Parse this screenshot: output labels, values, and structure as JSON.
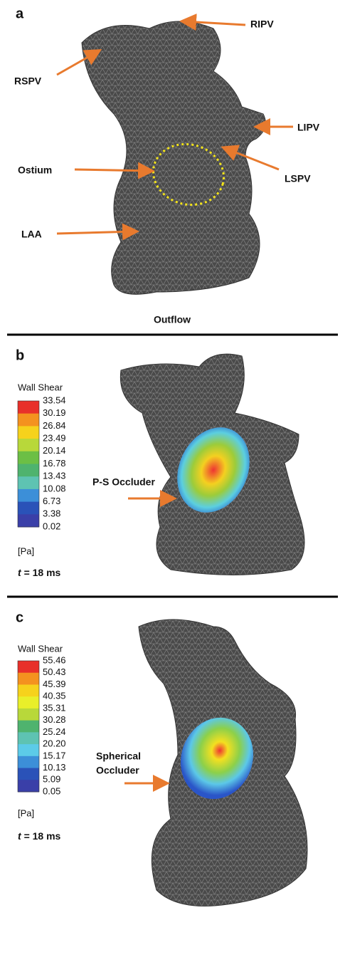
{
  "panel_a": {
    "label": "a",
    "annotations": [
      "RIPV",
      "RSPV",
      "LIPV",
      "Ostium",
      "LSPV",
      "LAA"
    ],
    "outflow": "Outflow"
  },
  "panel_b": {
    "label": "b",
    "colorbar_title": "Wall Shear",
    "colorbar_labels": [
      "33.54",
      "30.19",
      "26.84",
      "23.49",
      "20.14",
      "16.78",
      "13.43",
      "10.08",
      "6.73",
      "3.38",
      "0.02"
    ],
    "unit": "[Pa]",
    "time_var": "t",
    "time_text": "= 18 ms",
    "occluder": [
      "P-S Occluder"
    ]
  },
  "panel_c": {
    "label": "c",
    "colorbar_title": "Wall Shear",
    "colorbar_labels": [
      "55.46",
      "50.43",
      "45.39",
      "40.35",
      "35.31",
      "30.28",
      "25.24",
      "20.20",
      "15.17",
      "10.13",
      "5.09",
      "0.05"
    ],
    "unit": "[Pa]",
    "time_var": "t",
    "time_text": "= 18 ms",
    "occluder": [
      "Spherical",
      "Occluder"
    ]
  }
}
